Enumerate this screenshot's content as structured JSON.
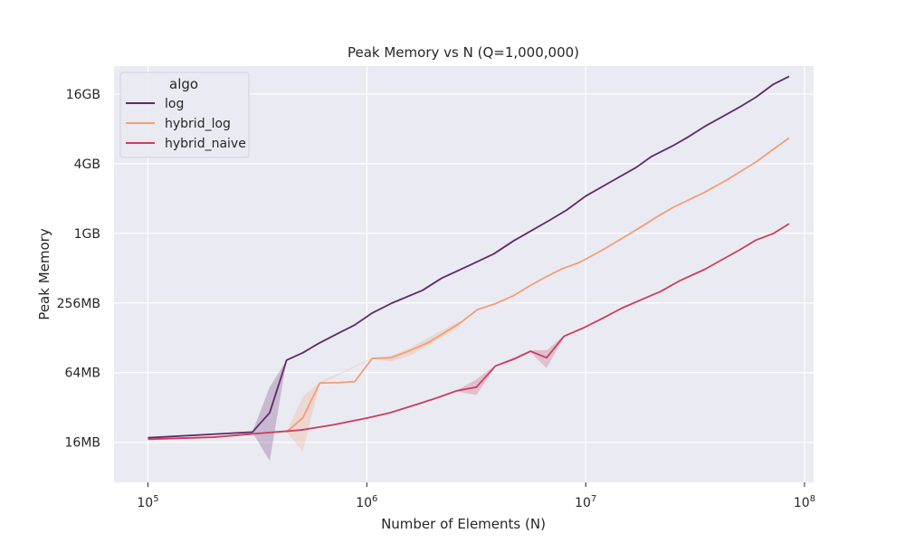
{
  "chart_data": {
    "type": "line",
    "title": "Peak Memory vs N (Q=1,000,000)",
    "xlabel": "Number of Elements (N)",
    "ylabel": "Peak Memory",
    "x_scale": "log10",
    "y_scale": "log2",
    "xlim": [
      70000,
      110000000
    ],
    "ylim_bytes": [
      7550000,
      30000000000
    ],
    "x_ticks": [
      {
        "value": 100000,
        "base": "10",
        "exp": "5"
      },
      {
        "value": 1000000,
        "base": "10",
        "exp": "6"
      },
      {
        "value": 10000000,
        "base": "10",
        "exp": "7"
      },
      {
        "value": 100000000,
        "base": "10",
        "exp": "8"
      }
    ],
    "y_ticks": [
      {
        "value": 16777216,
        "label": "16MB"
      },
      {
        "value": 67108864,
        "label": "64MB"
      },
      {
        "value": 268435456,
        "label": "256MB"
      },
      {
        "value": 1073741824,
        "label": "1GB"
      },
      {
        "value": 4294967296,
        "label": "4GB"
      },
      {
        "value": 17179869184,
        "label": "16GB"
      }
    ],
    "grid": true,
    "background": "#eaeaf2",
    "legend": {
      "title": "algo",
      "position": "upper-left"
    },
    "series": [
      {
        "name": "log",
        "color": "#5e2a6b",
        "x": [
          100000,
          300000,
          360000,
          430000,
          510000,
          600000,
          740000,
          880000,
          1060000,
          1300000,
          1800000,
          2200000,
          3000000,
          3800000,
          4700000,
          6800000,
          8200000,
          10000000,
          13000000,
          17000000,
          20000000,
          25000000,
          29000000,
          35000000,
          50000000,
          60000000,
          72000000,
          85000000
        ],
        "y_mb": [
          17.5,
          19.6,
          28.8,
          82,
          95,
          114,
          140,
          165,
          210,
          255,
          330,
          420,
          550,
          680,
          885,
          1320,
          1630,
          2150,
          2850,
          3800,
          4730,
          5850,
          6870,
          8600,
          12500,
          15400,
          19900,
          23300
        ],
        "band": [
          {
            "x": 300000,
            "lo": 19.6,
            "hi": 19.6
          },
          {
            "x": 360000,
            "lo": 11,
            "hi": 48
          },
          {
            "x": 430000,
            "lo": 82,
            "hi": 82
          }
        ]
      },
      {
        "name": "hybrid_log",
        "color": "#f29e75",
        "x": [
          430000,
          510000,
          610000,
          750000,
          880000,
          1060000,
          1290000,
          1590000,
          1920000,
          2270000,
          2670000,
          3200000,
          3900000,
          4650000,
          5550000,
          6500000,
          7800000,
          9400000,
          12000000,
          15000000,
          18000000,
          21000000,
          25000000,
          30000000,
          35000000,
          45000000,
          60000000,
          85000000
        ],
        "y_mb": [
          19.6,
          26,
          52,
          52.5,
          53.5,
          85,
          86,
          100,
          117,
          142,
          172,
          224,
          254,
          294,
          360,
          425,
          505,
          575,
          740,
          950,
          1170,
          1410,
          1710,
          2020,
          2320,
          3030,
          4240,
          6850
        ],
        "band": [
          {
            "x": 430000,
            "lo": 19.6,
            "hi": 19.6
          },
          {
            "x": 510000,
            "lo": 13.3,
            "hi": 40
          },
          {
            "x": 610000,
            "lo": 51,
            "hi": 53
          },
          {
            "x": 1060000,
            "lo": 84,
            "hi": 86
          },
          {
            "x": 1290000,
            "lo": 80,
            "hi": 89
          },
          {
            "x": 1590000,
            "lo": 90,
            "hi": 106
          },
          {
            "x": 2670000,
            "lo": 160,
            "hi": 180
          }
        ]
      },
      {
        "name": "hybrid_naive",
        "color": "#c93e61",
        "x": [
          100000,
          200000,
          300000,
          500000,
          700000,
          1000000,
          1270000,
          1660000,
          2100000,
          2570000,
          3170000,
          3870000,
          4720000,
          5600000,
          6630000,
          7960000,
          9700000,
          11900000,
          14700000,
          18000000,
          22000000,
          27000000,
          35000000,
          50000000,
          60000000,
          72000000,
          85000000
        ],
        "y_mb": [
          17,
          17.7,
          18.9,
          20.4,
          22.6,
          25.9,
          28.7,
          33.6,
          38.8,
          44.5,
          48,
          73,
          84,
          98,
          86,
          132,
          155,
          188,
          232,
          274,
          322,
          400,
          500,
          728,
          895,
          1020,
          1240
        ],
        "band": [
          {
            "x": 2570000,
            "lo": 44,
            "hi": 45
          },
          {
            "x": 3170000,
            "lo": 41,
            "hi": 56
          },
          {
            "x": 3870000,
            "lo": 72,
            "hi": 74
          },
          {
            "x": 5600000,
            "lo": 96,
            "hi": 100
          },
          {
            "x": 6630000,
            "lo": 70,
            "hi": 100
          },
          {
            "x": 7960000,
            "lo": 130,
            "hi": 134
          }
        ]
      }
    ]
  }
}
